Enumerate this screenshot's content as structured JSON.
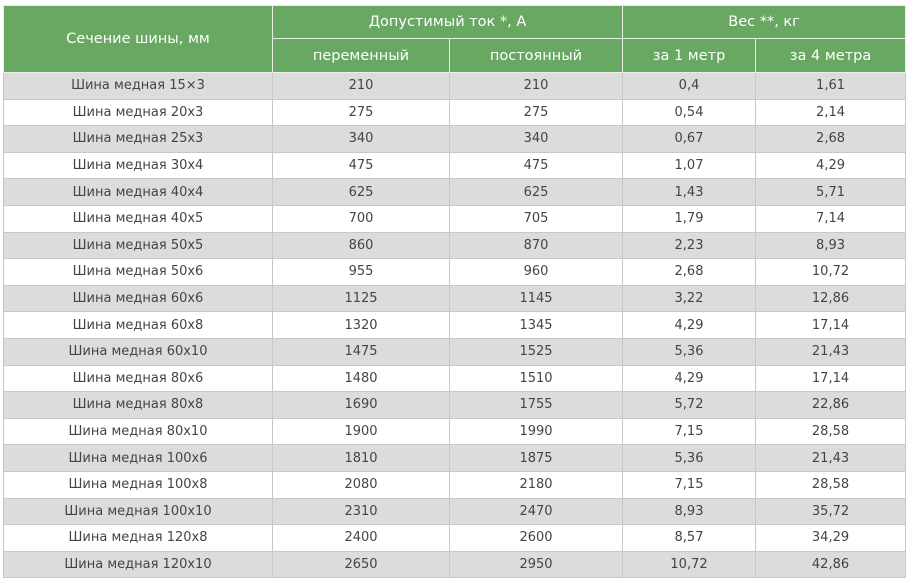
{
  "header": {
    "section": "Сечение шины, мм",
    "current": "Допустимый ток *,  А",
    "weight": "Вес **, кг",
    "subheaders": [
      "переменный",
      "постоянный",
      "за 1 метр",
      "за 4 метра"
    ]
  },
  "table": {
    "rows": [
      [
        "Шина медная 15×3",
        "210",
        "210",
        "0,4",
        "1,61"
      ],
      [
        "Шина медная 20x3",
        "275",
        "275",
        "0,54",
        "2,14"
      ],
      [
        "Шина медная 25x3",
        "340",
        "340",
        "0,67",
        "2,68"
      ],
      [
        "Шина медная 30x4",
        "475",
        "475",
        "1,07",
        "4,29"
      ],
      [
        "Шина медная 40x4",
        "625",
        "625",
        "1,43",
        "5,71"
      ],
      [
        "Шина медная 40x5",
        "700",
        "705",
        "1,79",
        "7,14"
      ],
      [
        "Шина медная 50x5",
        "860",
        "870",
        "2,23",
        "8,93"
      ],
      [
        "Шина медная 50x6",
        "955",
        "960",
        "2,68",
        "10,72"
      ],
      [
        "Шина медная 60x6",
        "1125",
        "1145",
        "3,22",
        "12,86"
      ],
      [
        "Шина медная 60x8",
        "1320",
        "1345",
        "4,29",
        "17,14"
      ],
      [
        "Шина медная 60x10",
        "1475",
        "1525",
        "5,36",
        "21,43"
      ],
      [
        "Шина медная 80x6",
        "1480",
        "1510",
        "4,29",
        "17,14"
      ],
      [
        "Шина медная 80x8",
        "1690",
        "1755",
        "5,72",
        "22,86"
      ],
      [
        "Шина медная 80x10",
        "1900",
        "1990",
        "7,15",
        "28,58"
      ],
      [
        "Шина медная 100x6",
        "1810",
        "1875",
        "5,36",
        "21,43"
      ],
      [
        "Шина медная 100x8",
        "2080",
        "2180",
        "7,15",
        "28,58"
      ],
      [
        "Шина медная 100x10",
        "2310",
        "2470",
        "8,93",
        "35,72"
      ],
      [
        "Шина медная 120x8",
        "2400",
        "2600",
        "8,57",
        "34,29"
      ],
      [
        "Шина медная 120x10",
        "2650",
        "2950",
        "10,72",
        "42,86"
      ]
    ]
  }
}
